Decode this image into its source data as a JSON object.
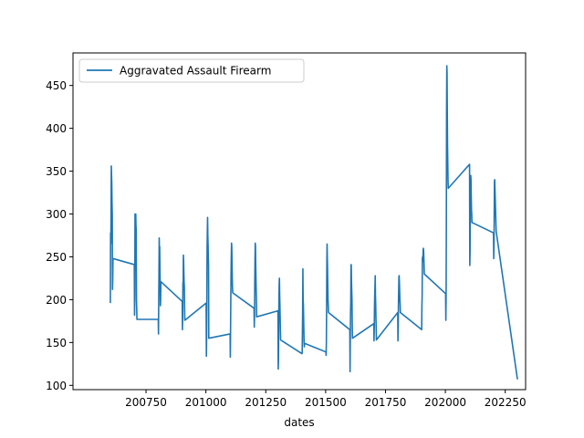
{
  "chart_data": {
    "type": "line",
    "title": "",
    "xlabel": "dates",
    "ylabel": "",
    "xlim": [
      200445,
      202335
    ],
    "ylim": [
      95,
      488
    ],
    "x_ticks": [
      200750,
      201000,
      201250,
      201500,
      201750,
      202000,
      202250
    ],
    "x_tick_labels": [
      "200750",
      "201000",
      "201250",
      "201500",
      "201750",
      "202000",
      "202250"
    ],
    "y_ticks": [
      100,
      150,
      200,
      250,
      300,
      350,
      400,
      450
    ],
    "y_tick_labels": [
      "100",
      "150",
      "200",
      "250",
      "300",
      "350",
      "400",
      "450"
    ],
    "grid": false,
    "legend": {
      "position": "top-left",
      "entries": [
        "Aggravated Assault Firearm"
      ]
    },
    "series": [
      {
        "name": "Aggravated Assault Firearm",
        "color": "#1f77b4",
        "x": [
          200601,
          200602,
          200603,
          200604,
          200605,
          200606,
          200607,
          200608,
          200609,
          200610,
          200611,
          200612,
          200701,
          200702,
          200703,
          200704,
          200705,
          200706,
          200707,
          200708,
          200709,
          200710,
          200711,
          200712,
          200801,
          200802,
          200803,
          200804,
          200805,
          200806,
          200807,
          200808,
          200809,
          200810,
          200811,
          200812,
          200901,
          200902,
          200903,
          200904,
          200905,
          200906,
          200907,
          200908,
          200909,
          200910,
          200911,
          200912,
          201001,
          201002,
          201003,
          201004,
          201005,
          201006,
          201007,
          201008,
          201009,
          201010,
          201011,
          201012,
          201101,
          201102,
          201103,
          201104,
          201105,
          201106,
          201107,
          201108,
          201109,
          201110,
          201111,
          201112,
          201201,
          201202,
          201203,
          201204,
          201205,
          201206,
          201207,
          201208,
          201209,
          201210,
          201211,
          201212,
          201301,
          201302,
          201303,
          201304,
          201305,
          201306,
          201307,
          201308,
          201309,
          201310,
          201311,
          201312,
          201401,
          201402,
          201403,
          201404,
          201405,
          201406,
          201407,
          201408,
          201409,
          201410,
          201411,
          201412,
          201501,
          201502,
          201503,
          201504,
          201505,
          201506,
          201507,
          201508,
          201509,
          201510,
          201511,
          201512,
          201601,
          201602,
          201603,
          201604,
          201605,
          201606,
          201607,
          201608,
          201609,
          201610,
          201611,
          201612,
          201701,
          201702,
          201703,
          201704,
          201705,
          201706,
          201707,
          201708,
          201709,
          201710,
          201711,
          201712,
          201801,
          201802,
          201803,
          201804,
          201805,
          201806,
          201807,
          201808,
          201809,
          201810,
          201811,
          201812,
          201901,
          201902,
          201903,
          201904,
          201905,
          201906,
          201907,
          201908,
          201909,
          201910,
          201911,
          201912,
          202001,
          202002,
          202003,
          202004,
          202005,
          202006,
          202007,
          202008,
          202009,
          202010,
          202011,
          202012,
          202101,
          202102,
          202103,
          202104,
          202105,
          202106,
          202107,
          202108,
          202109,
          202110,
          202111,
          202112,
          202201,
          202202,
          202203,
          202204,
          202205,
          202206,
          202207,
          202208,
          202209,
          202210,
          202211,
          202212,
          202301
        ],
        "y": [
          196,
          278,
          265,
          300,
          356,
          345,
          335,
          312,
          300,
          212,
          225,
          248,
          241,
          182,
          205,
          300,
          262,
          280,
          300,
          286,
          282,
          200,
          190,
          177,
          177,
          160,
          200,
          228,
          272,
          256,
          262,
          240,
          218,
          193,
          200,
          221,
          198,
          165,
          180,
          220,
          212,
          252,
          245,
          230,
          220,
          215,
          190,
          176,
          196,
          134,
          160,
          205,
          260,
          280,
          296,
          275,
          265,
          250,
          240,
          155,
          160,
          133,
          165,
          200,
          230,
          250,
          266,
          262,
          245,
          225,
          215,
          208,
          190,
          168,
          180,
          218,
          245,
          266,
          262,
          240,
          225,
          210,
          200,
          180,
          187,
          119,
          130,
          170,
          200,
          218,
          225,
          205,
          195,
          180,
          165,
          153,
          137,
          138,
          160,
          185,
          236,
          200,
          195,
          180,
          165,
          150,
          145,
          149,
          139,
          135,
          150,
          190,
          240,
          265,
          250,
          235,
          215,
          200,
          192,
          185,
          165,
          116,
          155,
          185,
          198,
          241,
          240,
          220,
          210,
          200,
          175,
          155,
          172,
          152,
          165,
          190,
          205,
          215,
          228,
          205,
          195,
          180,
          168,
          153,
          185,
          152,
          165,
          195,
          210,
          227,
          228,
          220,
          210,
          200,
          195,
          185,
          165,
          192,
          205,
          248,
          250,
          245,
          255,
          260,
          258,
          250,
          240,
          230,
          207,
          176,
          200,
          280,
          420,
          473,
          465,
          420,
          380,
          360,
          340,
          330,
          358,
          240,
          255,
          300,
          330,
          345,
          340,
          320,
          305,
          300,
          290,
          290,
          278,
          248,
          265,
          300,
          338,
          340,
          330,
          320,
          310,
          300,
          290,
          280,
          107
        ]
      }
    ]
  }
}
